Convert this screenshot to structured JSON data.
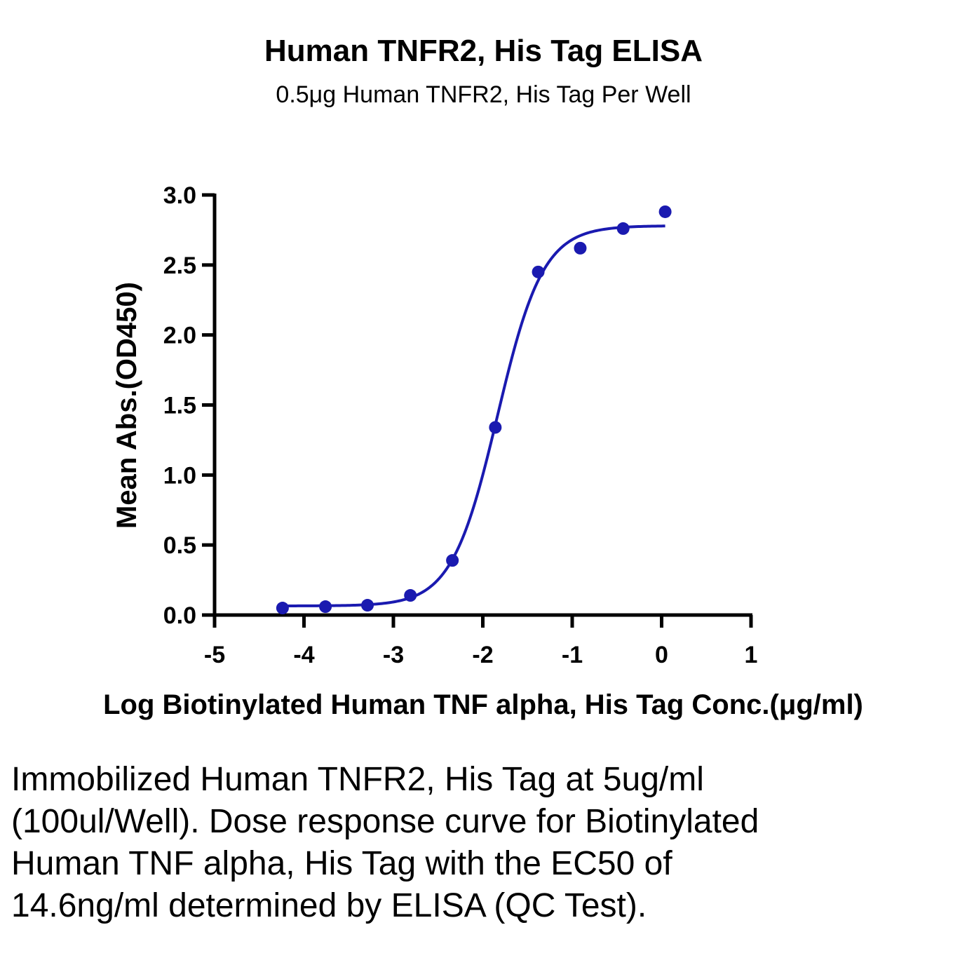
{
  "chart_data": {
    "type": "scatter",
    "title": "Human TNFR2, His Tag ELISA",
    "subtitle": "0.5μg Human TNFR2, His Tag Per Well",
    "xlabel": "Log Biotinylated Human TNF alpha, His Tag Conc.(μg/ml)",
    "ylabel": "Mean Abs.(OD450)",
    "xlim": [
      -5,
      1
    ],
    "ylim": [
      0,
      3
    ],
    "x_ticks": [
      "-5",
      "-4",
      "-3",
      "-2",
      "-1",
      "0",
      "1"
    ],
    "y_ticks": [
      "0.0",
      "0.5",
      "1.0",
      "1.5",
      "2.0",
      "2.5",
      "3.0"
    ],
    "grid": false,
    "color": "#1a1ab0",
    "series": [
      {
        "x": [
          -4.24,
          -3.76,
          -3.29,
          -2.81,
          -2.34,
          -1.86,
          -1.38,
          -0.91,
          -0.43,
          0.04
        ],
        "y": [
          0.05,
          0.06,
          0.07,
          0.14,
          0.39,
          1.34,
          2.45,
          2.62,
          2.76,
          2.88
        ]
      }
    ],
    "fit": {
      "model": "4PL",
      "bottom": 0.065,
      "top": 2.78,
      "logEC50": -1.836,
      "hill": 1.7
    }
  },
  "caption": "Immobilized Human TNFR2, His Tag at 5ug/ml (100ul/Well). Dose response curve for Biotinylated Human TNF alpha, His Tag with the EC50 of 14.6ng/ml determined by ELISA (QC Test)."
}
